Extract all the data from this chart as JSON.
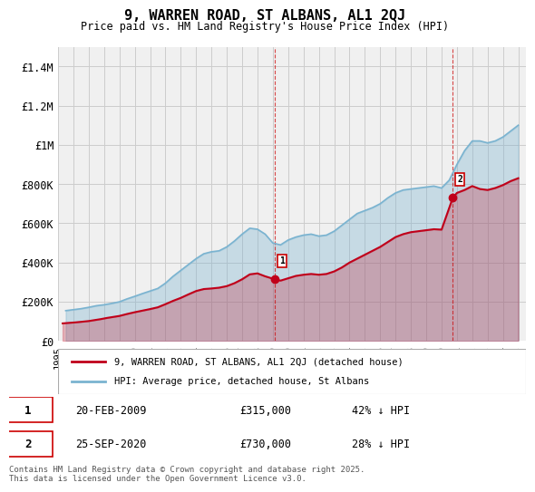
{
  "title": "9, WARREN ROAD, ST ALBANS, AL1 2QJ",
  "subtitle": "Price paid vs. HM Land Registry's House Price Index (HPI)",
  "legend_label_red": "9, WARREN ROAD, ST ALBANS, AL1 2QJ (detached house)",
  "legend_label_blue": "HPI: Average price, detached house, St Albans",
  "footnote": "Contains HM Land Registry data © Crown copyright and database right 2025.\nThis data is licensed under the Open Government Licence v3.0.",
  "annotation1": {
    "label": "1",
    "date_str": "20-FEB-2009",
    "price": 315000,
    "note": "42% ↓ HPI",
    "x_year": 2009.13
  },
  "annotation2": {
    "label": "2",
    "date_str": "25-SEP-2020",
    "price": 730000,
    "note": "28% ↓ HPI",
    "x_year": 2020.73
  },
  "ylim": [
    0,
    1500000
  ],
  "yticks": [
    0,
    200000,
    400000,
    600000,
    800000,
    1000000,
    1200000,
    1400000
  ],
  "ytick_labels": [
    "£0",
    "£200K",
    "£400K",
    "£600K",
    "£800K",
    "£1M",
    "£1.2M",
    "£1.4M"
  ],
  "xlim_start": 1995.0,
  "xlim_end": 2025.5,
  "xtick_years": [
    1995,
    1996,
    1997,
    1998,
    1999,
    2000,
    2001,
    2002,
    2003,
    2004,
    2005,
    2006,
    2007,
    2008,
    2009,
    2010,
    2011,
    2012,
    2013,
    2014,
    2015,
    2016,
    2017,
    2018,
    2019,
    2020,
    2021,
    2022,
    2023,
    2024,
    2025
  ],
  "color_red": "#c0001a",
  "color_blue": "#7ab3d0",
  "color_grid": "#cccccc",
  "color_background": "#f5f5f5",
  "vline1_x": 2009.13,
  "vline2_x": 2020.73,
  "hpi_data": {
    "years": [
      1995.5,
      1996.0,
      1996.5,
      1997.0,
      1997.5,
      1998.0,
      1998.5,
      1999.0,
      1999.5,
      2000.0,
      2000.5,
      2001.0,
      2001.5,
      2002.0,
      2002.5,
      2003.0,
      2003.5,
      2004.0,
      2004.5,
      2005.0,
      2005.5,
      2006.0,
      2006.5,
      2007.0,
      2007.5,
      2008.0,
      2008.5,
      2009.0,
      2009.5,
      2010.0,
      2010.5,
      2011.0,
      2011.5,
      2012.0,
      2012.5,
      2013.0,
      2013.5,
      2014.0,
      2014.5,
      2015.0,
      2015.5,
      2016.0,
      2016.5,
      2017.0,
      2017.5,
      2018.0,
      2018.5,
      2019.0,
      2019.5,
      2020.0,
      2020.5,
      2021.0,
      2021.5,
      2022.0,
      2022.5,
      2023.0,
      2023.5,
      2024.0,
      2024.5,
      2025.0
    ],
    "values": [
      155000,
      160000,
      165000,
      172000,
      180000,
      185000,
      192000,
      200000,
      215000,
      228000,
      242000,
      255000,
      268000,
      295000,
      330000,
      360000,
      390000,
      420000,
      445000,
      455000,
      460000,
      480000,
      510000,
      545000,
      575000,
      570000,
      545000,
      500000,
      490000,
      515000,
      530000,
      540000,
      545000,
      535000,
      540000,
      560000,
      590000,
      620000,
      650000,
      665000,
      680000,
      700000,
      730000,
      755000,
      770000,
      775000,
      780000,
      785000,
      790000,
      780000,
      820000,
      900000,
      970000,
      1020000,
      1020000,
      1010000,
      1020000,
      1040000,
      1070000,
      1100000
    ]
  },
  "price_data": {
    "years": [
      1995.3,
      1995.6,
      1996.1,
      1996.5,
      1997.0,
      1997.4,
      1997.8,
      1998.2,
      1998.6,
      1999.0,
      1999.5,
      2000.0,
      2000.5,
      2001.0,
      2001.5,
      2002.0,
      2002.5,
      2003.0,
      2003.5,
      2004.0,
      2004.5,
      2005.0,
      2005.5,
      2006.0,
      2006.5,
      2007.0,
      2007.5,
      2008.0,
      2008.5,
      2009.13,
      2009.5,
      2010.0,
      2010.5,
      2011.0,
      2011.5,
      2012.0,
      2012.5,
      2013.0,
      2013.5,
      2014.0,
      2014.5,
      2015.0,
      2015.5,
      2016.0,
      2016.5,
      2017.0,
      2017.5,
      2018.0,
      2018.5,
      2019.0,
      2019.5,
      2020.0,
      2020.73,
      2021.0,
      2021.5,
      2022.0,
      2022.5,
      2023.0,
      2023.5,
      2024.0,
      2024.5,
      2025.0
    ],
    "values": [
      90000,
      92000,
      95000,
      98000,
      102000,
      107000,
      112000,
      118000,
      123000,
      128000,
      138000,
      147000,
      155000,
      163000,
      172000,
      188000,
      205000,
      220000,
      238000,
      255000,
      265000,
      268000,
      272000,
      280000,
      295000,
      315000,
      340000,
      345000,
      330000,
      315000,
      308000,
      320000,
      332000,
      338000,
      342000,
      338000,
      342000,
      355000,
      375000,
      400000,
      420000,
      440000,
      460000,
      480000,
      505000,
      530000,
      545000,
      555000,
      560000,
      565000,
      570000,
      568000,
      730000,
      755000,
      770000,
      790000,
      775000,
      770000,
      780000,
      795000,
      815000,
      830000
    ]
  }
}
